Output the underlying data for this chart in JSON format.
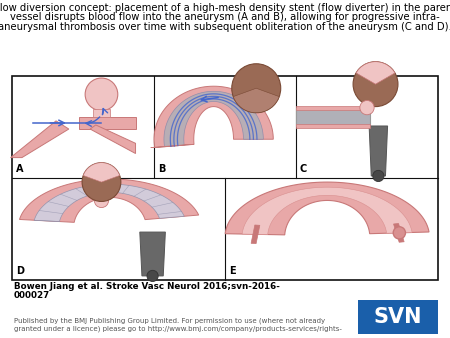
{
  "title_line1": "Flow diversion concept: placement of a high-mesh density stent (flow diverter) in the parent",
  "title_line2": "vessel disrupts blood flow into the aneurysm (A and B), allowing for progressive intra-",
  "title_line3": "aneurysmal thrombosis over time with subsequent obliteration of the aneurysm (C and D).",
  "citation_line1": "Bowen Jiang et al. Stroke Vasc Neurol 2016;svn-2016-",
  "citation_line2": "000027",
  "footer_line1": "Published by the BMJ Publishing Group Limited. For permission to use (where not already",
  "footer_line2": "granted under a licence) please go to http://www.bmj.com/company/products-services/rights-",
  "svn_text": "SVN",
  "svn_bg": "#1a5faa",
  "svn_text_color": "#ffffff",
  "bg_color": "#ffffff",
  "border_color": "#111111",
  "title_fontsize": 7.2,
  "citation_fontsize": 6.3,
  "footer_fontsize": 5.0,
  "svn_fontsize": 15,
  "pink": "#e8a8a8",
  "pink_light": "#f0c4c4",
  "pink_dark": "#c87878",
  "pink_medium": "#d99090",
  "gray_stent": "#b0b0b8",
  "gray_dark": "#686868",
  "gray_darker": "#484848",
  "brown_aneurysm": "#9a6a55",
  "brown_dark": "#7a4a35",
  "brown_light": "#b08070",
  "blue_arrow": "#3355bb",
  "blue_line": "#4466cc",
  "panel_label_size": 7
}
